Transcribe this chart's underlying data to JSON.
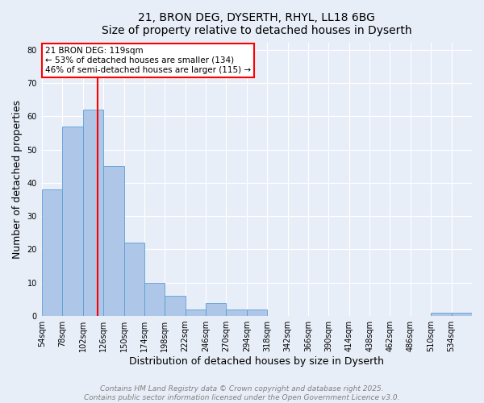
{
  "title_line1": "21, BRON DEG, DYSERTH, RHYL, LL18 6BG",
  "title_line2": "Size of property relative to detached houses in Dyserth",
  "xlabel": "Distribution of detached houses by size in Dyserth",
  "ylabel": "Number of detached properties",
  "categories": [
    "54sqm",
    "78sqm",
    "102sqm",
    "126sqm",
    "150sqm",
    "174sqm",
    "198sqm",
    "222sqm",
    "246sqm",
    "270sqm",
    "294sqm",
    "318sqm",
    "342sqm",
    "366sqm",
    "390sqm",
    "414sqm",
    "438sqm",
    "462sqm",
    "486sqm",
    "510sqm",
    "534sqm"
  ],
  "values": [
    38,
    57,
    62,
    45,
    22,
    10,
    6,
    2,
    4,
    2,
    2,
    0,
    0,
    0,
    0,
    0,
    0,
    0,
    0,
    1,
    1
  ],
  "bar_color": "#aec6e8",
  "bar_edge_color": "#5a9fd4",
  "vline_x_idx": 2.708,
  "annotation_text": "21 BRON DEG: 119sqm\n← 53% of detached houses are smaller (134)\n46% of semi-detached houses are larger (115) →",
  "annotation_box_color": "white",
  "annotation_box_edge_color": "red",
  "vline_color": "red",
  "ylim": [
    0,
    82
  ],
  "yticks": [
    0,
    10,
    20,
    30,
    40,
    50,
    60,
    70,
    80
  ],
  "footer_line1": "Contains HM Land Registry data © Crown copyright and database right 2025.",
  "footer_line2": "Contains public sector information licensed under the Open Government Licence v3.0.",
  "background_color": "#e8eef8",
  "plot_background_color": "#e8eef8",
  "title_fontsize": 10,
  "axis_label_fontsize": 9,
  "tick_fontsize": 7,
  "annotation_fontsize": 7.5,
  "footer_fontsize": 6.5
}
